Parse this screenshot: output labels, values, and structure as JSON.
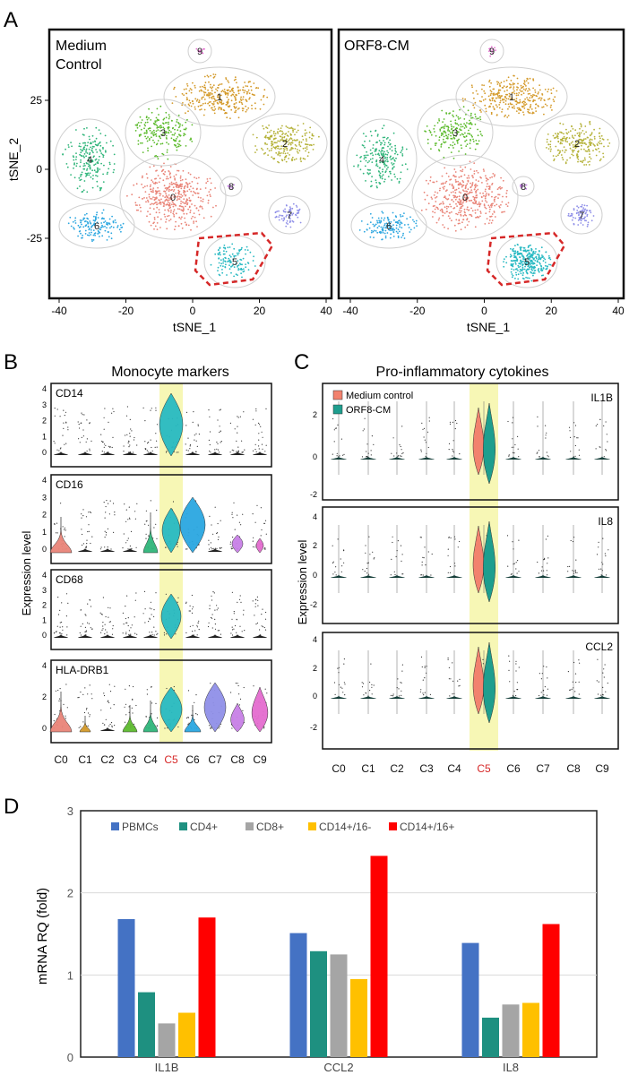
{
  "panel_letters": {
    "a": "A",
    "b": "B",
    "c": "C",
    "d": "D"
  },
  "tsne": {
    "left_title": [
      "Medium",
      "Control"
    ],
    "right_title": "ORF8-CM",
    "xlabel": "tSNE_1",
    "ylabel": "tSNE_2",
    "xticks": [
      "-40",
      "-20",
      "0",
      "20",
      "40"
    ],
    "yticks": [
      "25",
      "0",
      "-25"
    ],
    "highlight_cluster": "5",
    "clusters": [
      {
        "id": "0",
        "color": "#E98478"
      },
      {
        "id": "1",
        "color": "#D49A2A"
      },
      {
        "id": "2",
        "color": "#B5B23A"
      },
      {
        "id": "3",
        "color": "#5DBB2E"
      },
      {
        "id": "4",
        "color": "#2FB57A"
      },
      {
        "id": "5",
        "color": "#27B9C2"
      },
      {
        "id": "6",
        "color": "#2AA6E0"
      },
      {
        "id": "7",
        "color": "#8F8FE8"
      },
      {
        "id": "8",
        "color": "#C77FE6"
      },
      {
        "id": "9",
        "color": "#E46BCF"
      }
    ]
  },
  "violin_b": {
    "title": "Monocyte markers",
    "ylabel": "Expression level",
    "markers": [
      "CD14",
      "CD16",
      "CD68",
      "HLA-DRB1"
    ]
  },
  "violin_c": {
    "title": "Pro-inflammatory cytokines",
    "ylabel": "Expression level",
    "legend": [
      "Medium control",
      "ORF8-CM"
    ],
    "legend_colors": [
      "#F2826E",
      "#1E9E8E"
    ],
    "genes": [
      "IL1B",
      "IL8",
      "CCL2"
    ]
  },
  "cluster_labels": [
    "C0",
    "C1",
    "C2",
    "C3",
    "C4",
    "C5",
    "C6",
    "C7",
    "C8",
    "C9"
  ],
  "highlight_cluster_label": "C5",
  "highlight_color": "#F7F7B5",
  "chart_data": {
    "type": "bar",
    "categories": [
      "IL1B",
      "CCL2",
      "IL8"
    ],
    "ylabel": "mRNA RQ (fold)",
    "ylim": [
      0,
      3
    ],
    "yticks": [
      "0",
      "1",
      "2",
      "3"
    ],
    "grid": true,
    "legend_position": "top",
    "series": [
      {
        "name": "PBMCs",
        "color": "#4472C4",
        "values": [
          1.68,
          1.51,
          1.39
        ]
      },
      {
        "name": "CD4+",
        "color": "#1E9080",
        "values": [
          0.79,
          1.29,
          0.48
        ]
      },
      {
        "name": "CD8+",
        "color": "#A5A5A5",
        "values": [
          0.41,
          1.25,
          0.64
        ]
      },
      {
        "name": "CD14+/16-",
        "color": "#FFC000",
        "values": [
          0.54,
          0.95,
          0.66
        ]
      },
      {
        "name": "CD14+/16+",
        "color": "#FF0000",
        "values": [
          1.7,
          2.45,
          1.62
        ]
      }
    ]
  }
}
